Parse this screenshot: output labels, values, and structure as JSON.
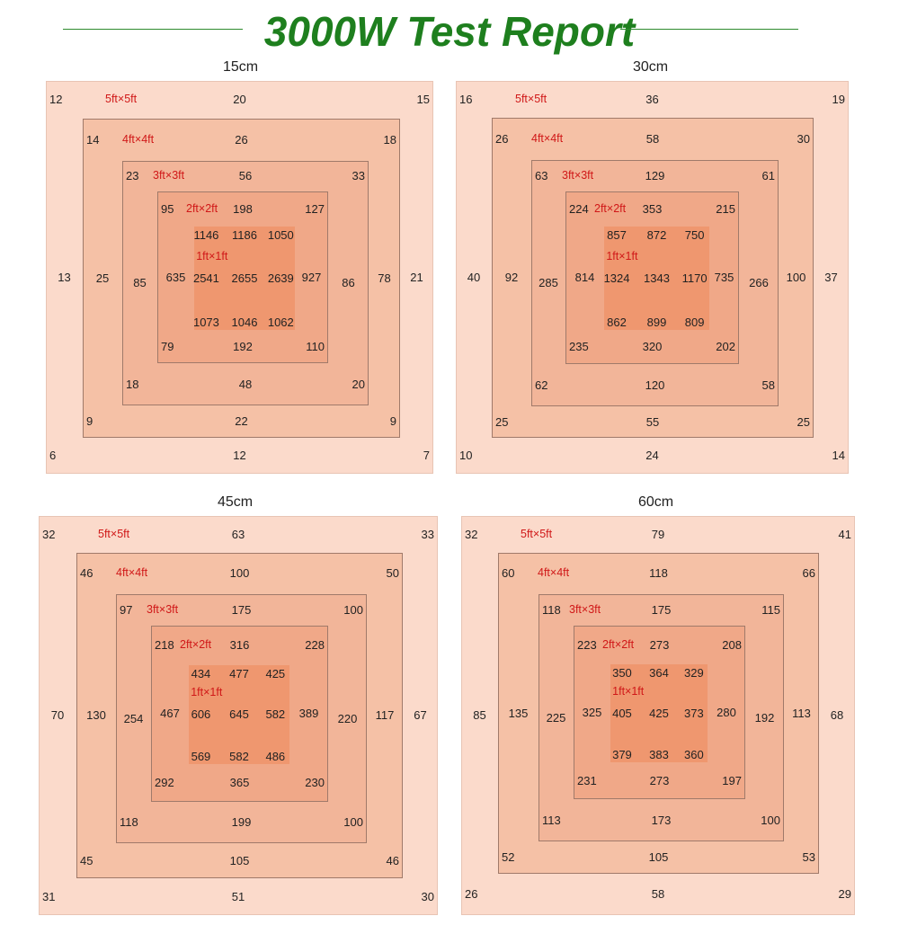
{
  "header": {
    "title": "3000W Test Report"
  },
  "colors": {
    "title": "#1e7f1e",
    "ring_5ft": "#fbdacb",
    "ring_4ft": "#f5c1a6",
    "ring_3ft": "#f2b599",
    "ring_2ft": "#f0a888",
    "ring_1ft": "#ef976f",
    "zone_label": "#d01818"
  },
  "zone_labels": [
    "5ft×5ft",
    "4ft×4ft",
    "3ft×3ft",
    "2ft×2ft",
    "1ft×1ft"
  ],
  "panels": [
    {
      "height": "15cm",
      "ring_5ft": {
        "tl": "12",
        "tc": "20",
        "tr": "15",
        "ml": "13",
        "mr": "21",
        "bl": "6",
        "bc": "12",
        "br": "7"
      },
      "ring_4ft": {
        "tl": "14",
        "tc": "26",
        "tr": "18",
        "ml": "25",
        "mr": "78",
        "bl": "9",
        "bc": "22",
        "br": "9"
      },
      "ring_3ft": {
        "tl": "23",
        "tc": "56",
        "tr": "33",
        "ml": "85",
        "mr": "86",
        "bl": "18",
        "bc": "48",
        "br": "20"
      },
      "ring_2ft": {
        "tl": "95",
        "tc": "198",
        "tr": "127",
        "ml": "635",
        "mr": "927",
        "bl": "79",
        "bc": "192",
        "br": "110"
      },
      "ring_1ft": {
        "tl": "1146",
        "tc": "1186",
        "tr": "1050",
        "ml": "2541",
        "mc": "2655",
        "mr": "2639",
        "bl": "1073",
        "bc": "1046",
        "br": "1062"
      }
    },
    {
      "height": "30cm",
      "ring_5ft": {
        "tl": "16",
        "tc": "36",
        "tr": "19",
        "ml": "40",
        "mr": "37",
        "bl": "10",
        "bc": "24",
        "br": "14"
      },
      "ring_4ft": {
        "tl": "26",
        "tc": "58",
        "tr": "30",
        "ml": "92",
        "mr": "100",
        "bl": "25",
        "bc": "55",
        "br": "25"
      },
      "ring_3ft": {
        "tl": "63",
        "tc": "129",
        "tr": "61",
        "ml": "285",
        "mr": "266",
        "bl": "62",
        "bc": "120",
        "br": "58"
      },
      "ring_2ft": {
        "tl": "224",
        "tc": "353",
        "tr": "215",
        "ml": "814",
        "mr": "735",
        "bl": "235",
        "bc": "320",
        "br": "202"
      },
      "ring_1ft": {
        "tl": "857",
        "tc": "872",
        "tr": "750",
        "ml": "1324",
        "mc": "1343",
        "mr": "1170",
        "bl": "862",
        "bc": "899",
        "br": "809"
      }
    },
    {
      "height": "45cm",
      "ring_5ft": {
        "tl": "32",
        "tc": "63",
        "tr": "33",
        "ml": "70",
        "mr": "67",
        "bl": "31",
        "bc": "51",
        "br": "30"
      },
      "ring_4ft": {
        "tl": "46",
        "tc": "100",
        "tr": "50",
        "ml": "130",
        "mr": "117",
        "bl": "45",
        "bc": "105",
        "br": "46"
      },
      "ring_3ft": {
        "tl": "97",
        "tc": "175",
        "tr": "100",
        "ml": "254",
        "mr": "220",
        "bl": "118",
        "bc": "199",
        "br": "100"
      },
      "ring_2ft": {
        "tl": "218",
        "tc": "316",
        "tr": "228",
        "ml": "467",
        "mr": "389",
        "bl": "292",
        "bc": "365",
        "br": "230"
      },
      "ring_1ft": {
        "tl": "434",
        "tc": "477",
        "tr": "425",
        "ml": "606",
        "mc": "645",
        "mr": "582",
        "bl": "569",
        "bc": "582",
        "br": "486"
      }
    },
    {
      "height": "60cm",
      "ring_5ft": {
        "tl": "32",
        "tc": "79",
        "tr": "41",
        "ml": "85",
        "mr": "68",
        "bl": "26",
        "bc": "58",
        "br": "29"
      },
      "ring_4ft": {
        "tl": "60",
        "tc": "118",
        "tr": "66",
        "ml": "135",
        "mr": "113",
        "bl": "52",
        "bc": "105",
        "br": "53"
      },
      "ring_3ft": {
        "tl": "118",
        "tc": "175",
        "tr": "115",
        "ml": "225",
        "mr": "192",
        "bl": "113",
        "bc": "173",
        "br": "100"
      },
      "ring_2ft": {
        "tl": "223",
        "tc": "273",
        "tr": "208",
        "ml": "325",
        "mr": "280",
        "bl": "231",
        "bc": "273",
        "br": "197"
      },
      "ring_1ft": {
        "tl": "350",
        "tc": "364",
        "tr": "329",
        "ml": "405",
        "mc": "425",
        "mr": "373",
        "bl": "379",
        "bc": "383",
        "br": "360"
      }
    }
  ]
}
